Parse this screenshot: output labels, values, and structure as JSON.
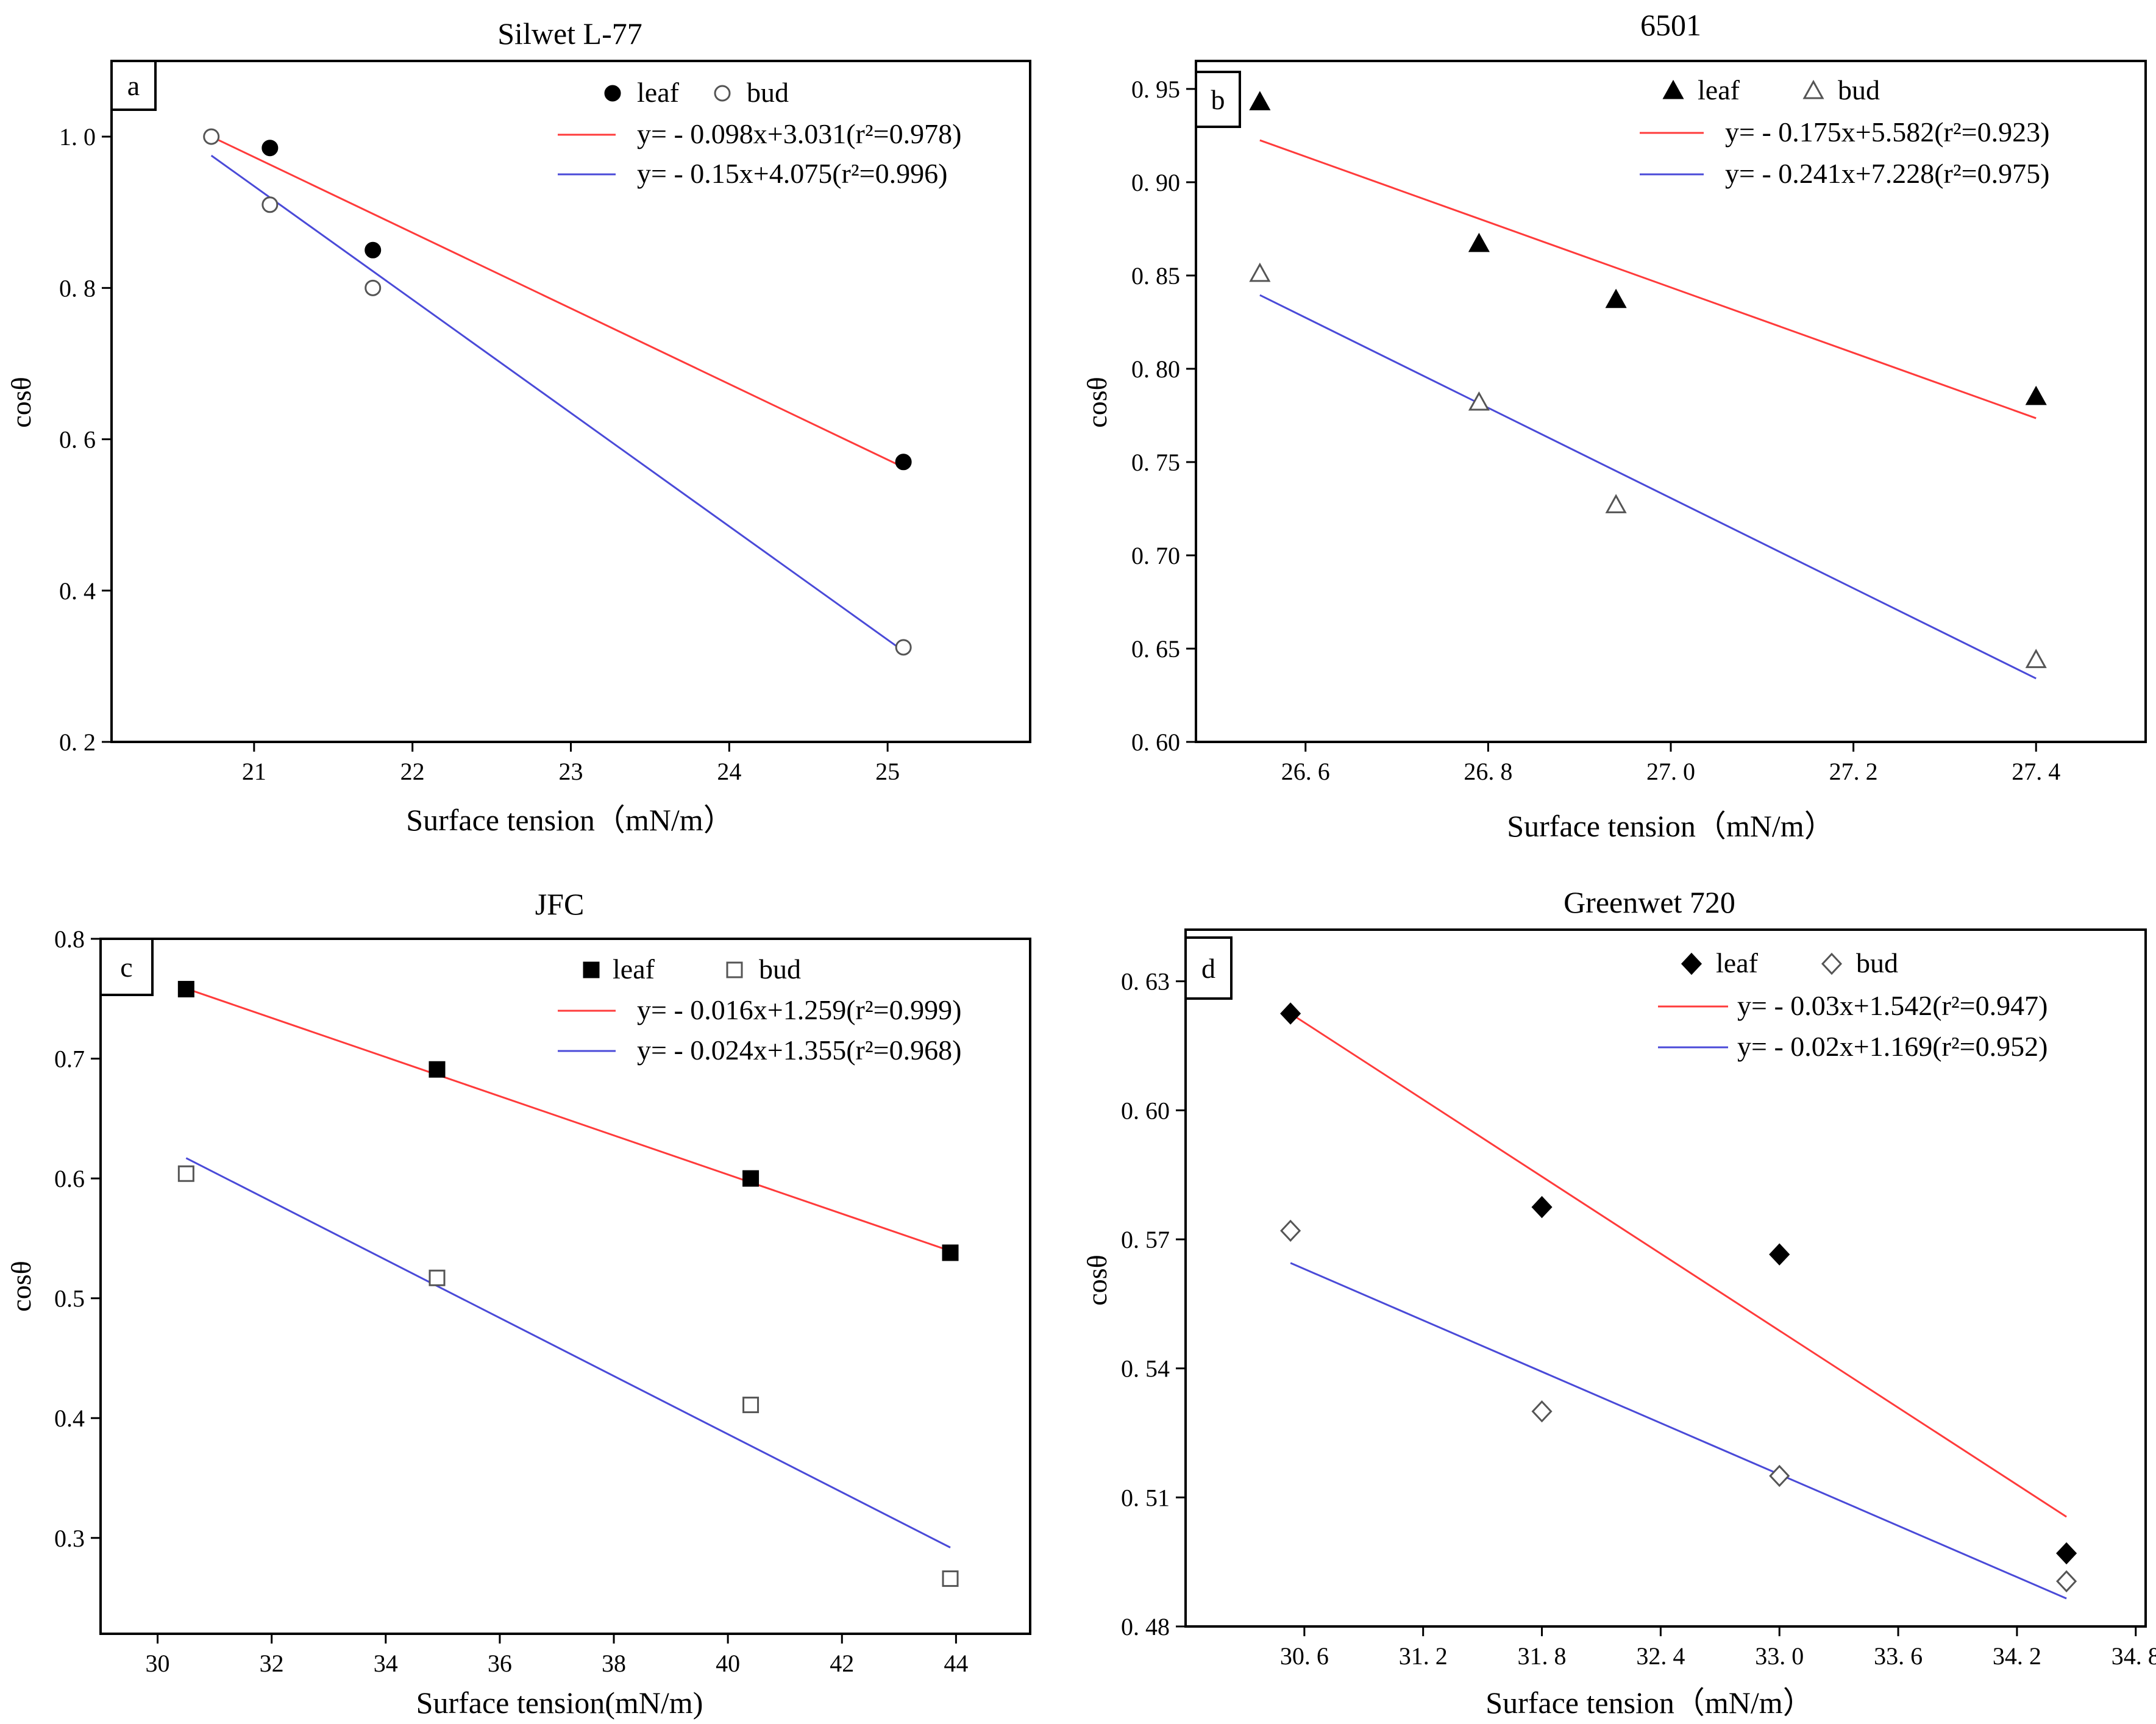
{
  "chart_data": [
    {
      "type": "scatter",
      "panel_label": "a",
      "title": "Silwet L-77",
      "xlabel": "Surface tension（mN/m）",
      "ylabel": "cosθ",
      "xlim": [
        20.1,
        25.9
      ],
      "ylim": [
        0.2,
        1.1
      ],
      "xticks": [
        21,
        22,
        23,
        24,
        25
      ],
      "xtick_labels": [
        "21",
        "22",
        "23",
        "24",
        "25"
      ],
      "yticks": [
        0.2,
        0.4,
        0.6,
        0.8,
        1.0
      ],
      "ytick_labels": [
        "0. 2",
        "0. 4",
        "0. 6",
        "0. 8",
        "1. 0"
      ],
      "marker": "circle",
      "legend_position": "top-right",
      "series": [
        {
          "name": "leaf",
          "filled": true,
          "x": [
            21.1,
            21.75,
            25.1
          ],
          "y": [
            0.985,
            0.85,
            0.57
          ]
        },
        {
          "name": "bud",
          "filled": false,
          "x": [
            20.73,
            21.1,
            21.75,
            25.1
          ],
          "y": [
            1.0,
            0.91,
            0.8,
            0.325
          ]
        }
      ],
      "fits": [
        {
          "label": "y= - 0.098x+3.031(r²=0.978)",
          "color": "#ff3b3b",
          "x": [
            20.73,
            25.1
          ],
          "y": [
            1.0,
            0.563
          ]
        },
        {
          "label": "y= - 0.15x+4.075(r²=0.996)",
          "color": "#4a4ad8",
          "x": [
            20.73,
            25.1
          ],
          "y": [
            0.975,
            0.32
          ]
        }
      ]
    },
    {
      "type": "scatter",
      "panel_label": "b",
      "title": "6501",
      "xlabel": "Surface tension（mN/m）",
      "ylabel": "cosθ",
      "xlim": [
        26.48,
        27.52
      ],
      "ylim": [
        0.6,
        0.965
      ],
      "xticks": [
        26.6,
        26.8,
        27.0,
        27.2,
        27.4
      ],
      "xtick_labels": [
        "26. 6",
        "26. 8",
        "27. 0",
        "27. 2",
        "27. 4"
      ],
      "yticks": [
        0.6,
        0.65,
        0.7,
        0.75,
        0.8,
        0.85,
        0.9,
        0.95
      ],
      "ytick_labels": [
        "0. 60",
        "0. 65",
        "0. 70",
        "0. 75",
        "0. 80",
        "0. 85",
        "0. 90",
        "0. 95"
      ],
      "marker": "triangle",
      "legend_position": "top-right",
      "series": [
        {
          "name": "leaf",
          "filled": true,
          "x": [
            26.55,
            26.79,
            26.94,
            27.4
          ],
          "y": [
            0.943,
            0.867,
            0.837,
            0.785
          ]
        },
        {
          "name": "bud",
          "filled": false,
          "x": [
            26.55,
            26.79,
            26.94,
            27.4
          ],
          "y": [
            0.851,
            0.782,
            0.727,
            0.644
          ]
        }
      ],
      "fits": [
        {
          "label": "y= - 0.175x+5.582(r²=0.923)",
          "color": "#ff3b3b",
          "x": [
            26.55,
            27.4
          ],
          "y": [
            0.9225,
            0.7735
          ]
        },
        {
          "label": "y= - 0.241x+7.228(r²=0.975)",
          "color": "#4a4ad8",
          "x": [
            26.55,
            27.4
          ],
          "y": [
            0.8395,
            0.634
          ]
        }
      ]
    },
    {
      "type": "scatter",
      "panel_label": "c",
      "title": "JFC",
      "xlabel": "Surface tension(mN/m)",
      "ylabel": "cosθ",
      "xlim": [
        29.0,
        45.3
      ],
      "ylim": [
        0.22,
        0.8
      ],
      "xticks": [
        30,
        32,
        34,
        36,
        38,
        40,
        42,
        44
      ],
      "xtick_labels": [
        "30",
        "32",
        "34",
        "36",
        "38",
        "40",
        "42",
        "44"
      ],
      "yticks": [
        0.3,
        0.4,
        0.5,
        0.6,
        0.7,
        0.8
      ],
      "ytick_labels": [
        "0.3",
        "0.4",
        "0.5",
        "0.6",
        "0.7",
        "0.8"
      ],
      "marker": "square",
      "legend_position": "top-right",
      "series": [
        {
          "name": "leaf",
          "filled": true,
          "x": [
            30.5,
            34.9,
            40.4,
            43.9
          ],
          "y": [
            0.758,
            0.691,
            0.6,
            0.538
          ]
        },
        {
          "name": "bud",
          "filled": false,
          "x": [
            30.5,
            34.9,
            40.4,
            43.9
          ],
          "y": [
            0.604,
            0.517,
            0.411,
            0.266
          ]
        }
      ],
      "fits": [
        {
          "label": "y= - 0.016x+1.259(r²=0.999)",
          "color": "#ff3b3b",
          "x": [
            30.5,
            43.9
          ],
          "y": [
            0.7585,
            0.5395
          ]
        },
        {
          "label": "y= - 0.024x+1.355(r²=0.968)",
          "color": "#4a4ad8",
          "x": [
            30.5,
            43.9
          ],
          "y": [
            0.617,
            0.292
          ]
        }
      ]
    },
    {
      "type": "scatter",
      "panel_label": "d",
      "title": "Greenwet 720",
      "xlabel": "Surface tension（mN/m）",
      "ylabel": "cosθ",
      "xlim": [
        30.0,
        34.85
      ],
      "ylim": [
        0.48,
        0.642
      ],
      "xticks": [
        30.6,
        31.2,
        31.8,
        32.4,
        33.0,
        33.6,
        34.2,
        34.8
      ],
      "xtick_labels": [
        "30. 6",
        "31. 2",
        "31. 8",
        "32. 4",
        "33. 0",
        "33. 6",
        "34. 2",
        "34. 8"
      ],
      "yticks": [
        0.48,
        0.51,
        0.54,
        0.57,
        0.6,
        0.63
      ],
      "ytick_labels": [
        "0. 48",
        "0. 51",
        "0. 54",
        "0. 57",
        "0. 60",
        "0. 63"
      ],
      "marker": "diamond",
      "legend_position": "top-right",
      "series": [
        {
          "name": "leaf",
          "filled": true,
          "x": [
            30.53,
            31.8,
            33.0,
            34.45
          ],
          "y": [
            0.6225,
            0.5775,
            0.5665,
            0.497
          ]
        },
        {
          "name": "bud",
          "filled": false,
          "x": [
            30.53,
            31.8,
            33.0,
            34.45
          ],
          "y": [
            0.572,
            0.53,
            0.515,
            0.4905
          ]
        }
      ],
      "fits": [
        {
          "label": "y= - 0.03x+1.542(r²=0.947)",
          "color": "#ff3b3b",
          "x": [
            30.53,
            34.45
          ],
          "y": [
            0.6225,
            0.5055
          ]
        },
        {
          "label": "y= - 0.02x+1.169(r²=0.952)",
          "color": "#4a4ad8",
          "x": [
            30.53,
            34.45
          ],
          "y": [
            0.5645,
            0.4865
          ]
        }
      ]
    }
  ]
}
